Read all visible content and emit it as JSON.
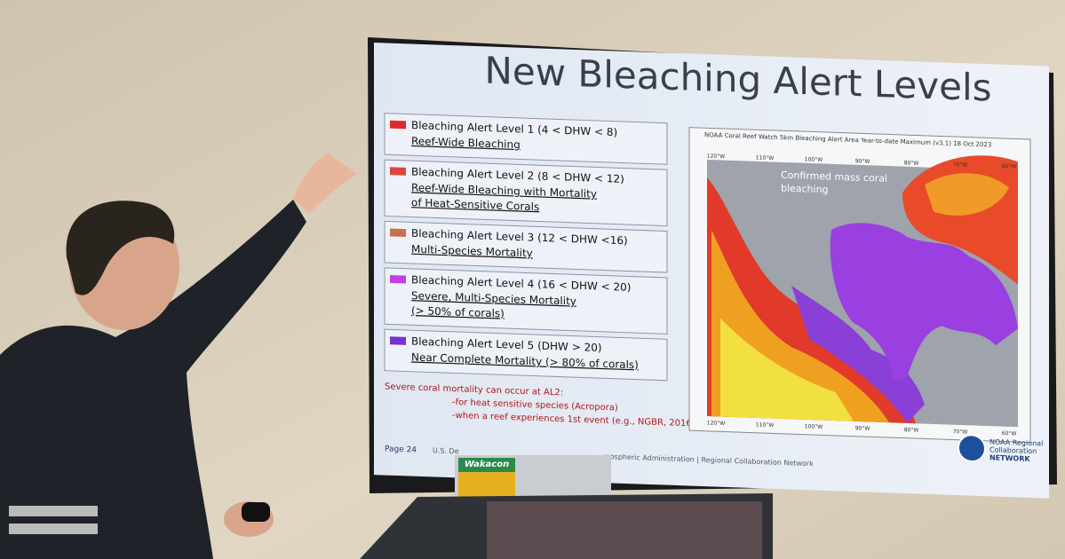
{
  "slide": {
    "title": "New Bleaching Alert Levels",
    "levels": [
      {
        "color": "#e0282e",
        "heading": "Bleaching Alert Level 1 (4 < DHW < 8)",
        "lines": [
          "Reef-Wide Bleaching"
        ]
      },
      {
        "color": "#d9473f",
        "heading": "Bleaching Alert Level 2 (8 < DHW < 12)",
        "lines": [
          "Reef-Wide Bleaching with Mortality",
          "of Heat-Sensitive Corals"
        ]
      },
      {
        "color": "#c8704e",
        "heading": "Bleaching Alert Level 3 (12 < DHW <16)",
        "lines": [
          "Multi-Species Mortality"
        ]
      },
      {
        "color": "#c23fe6",
        "heading": "Bleaching Alert Level 4 (16 < DHW < 20)",
        "lines": [
          "Severe, Multi-Species Mortality",
          "(> 50% of corals)"
        ]
      },
      {
        "color": "#7a2fd0",
        "heading": "Bleaching Alert Level 5 (DHW > 20)",
        "lines": [
          "Near Complete Mortality (> 80% of corals)"
        ]
      }
    ],
    "note": [
      "Severe coral mortality can occur at AL2:",
      "-for heat sensitive species (Acropora)",
      "-when a reef experiences 1st event (e.g., NGBR, 2016)"
    ],
    "map": {
      "title": "NOAA Coral Reef Watch 5km Bleaching Alert Area Year-to-date Maximum (v3.1)   18 Oct 2023",
      "annotation": [
        "Confirmed mass coral",
        "bleaching"
      ],
      "longitudes": [
        "120°W",
        "110°W",
        "100°W",
        "90°W",
        "80°W",
        "70°W",
        "60°W"
      ]
    },
    "footer": {
      "page": "Page 24",
      "agency": "U.S. De",
      "network": "mospheric Administration  |  Regional Collaboration Network"
    },
    "logo": [
      "NOAA Regional",
      "Collaboration",
      "NETWORK"
    ],
    "sticker": "Wakacon"
  }
}
